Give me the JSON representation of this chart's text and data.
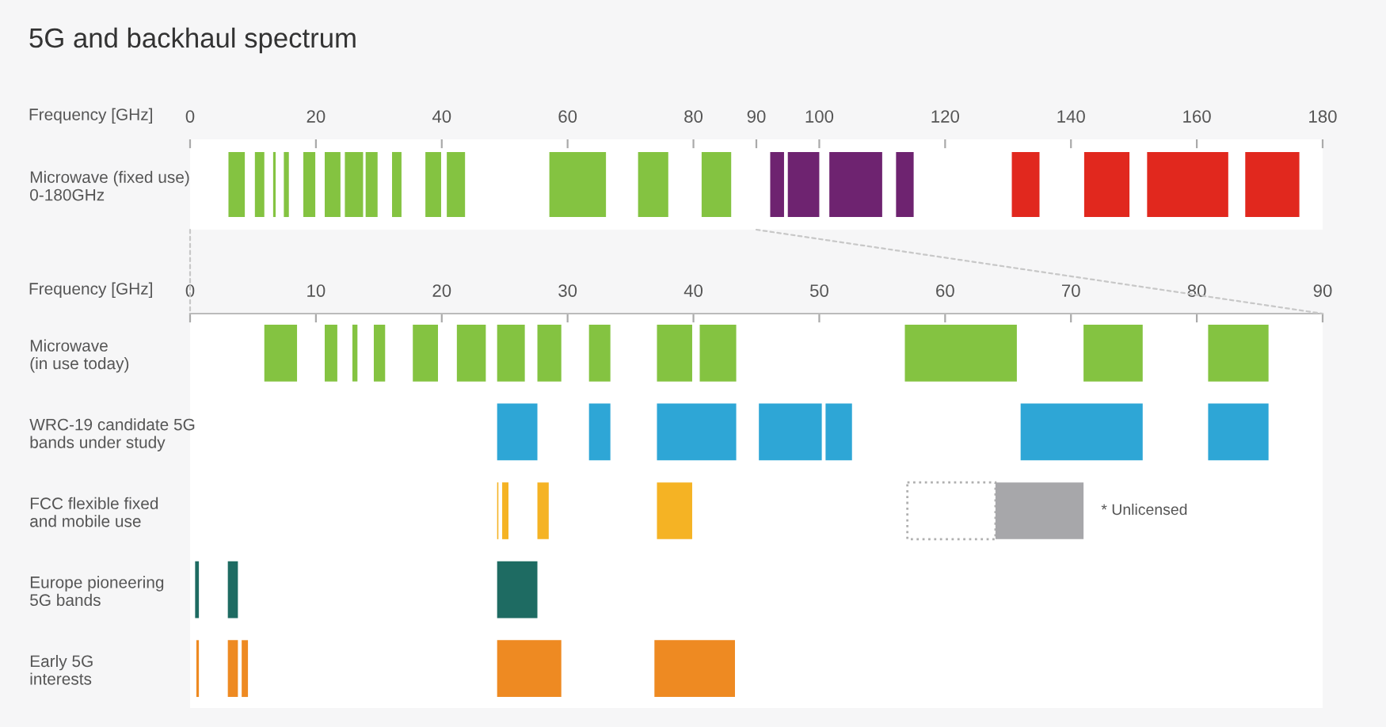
{
  "chart_data": [
    {
      "type": "bar",
      "orientation": "horizontal",
      "title": "5G and backhaul spectrum",
      "xlabel": "Frequency [GHz]",
      "categories": [
        "Microwave (fixed use)\n0-180GHz"
      ],
      "xlim": [
        0,
        180
      ],
      "xticks": [
        0,
        20,
        40,
        60,
        80,
        90,
        100,
        120,
        140,
        160,
        180
      ],
      "grid": false,
      "series": [
        {
          "color": "#84c341",
          "base": [
            6.1
          ],
          "values": [
            2.6
          ]
        },
        {
          "color": "#84c341",
          "base": [
            10.3
          ],
          "values": [
            1.5
          ]
        },
        {
          "color": "#84c341",
          "base": [
            13.2
          ],
          "values": [
            0.4
          ]
        },
        {
          "color": "#84c341",
          "base": [
            14.9
          ],
          "values": [
            0.8
          ]
        },
        {
          "color": "#84c341",
          "base": [
            18.0
          ],
          "values": [
            1.9
          ]
        },
        {
          "color": "#84c341",
          "base": [
            21.4
          ],
          "values": [
            2.5
          ]
        },
        {
          "color": "#84c341",
          "base": [
            24.6
          ],
          "values": [
            2.9
          ]
        },
        {
          "color": "#84c341",
          "base": [
            27.9
          ],
          "values": [
            1.9
          ]
        },
        {
          "color": "#84c341",
          "base": [
            32.1
          ],
          "values": [
            1.5
          ]
        },
        {
          "color": "#84c341",
          "base": [
            37.4
          ],
          "values": [
            2.5
          ]
        },
        {
          "color": "#84c341",
          "base": [
            40.8
          ],
          "values": [
            2.9
          ]
        },
        {
          "color": "#84c341",
          "base": [
            57.1
          ],
          "values": [
            9.0
          ]
        },
        {
          "color": "#84c341",
          "base": [
            71.2
          ],
          "values": [
            4.8
          ]
        },
        {
          "color": "#84c341",
          "base": [
            81.3
          ],
          "values": [
            4.7
          ]
        },
        {
          "color": "#6e2370",
          "base": [
            92.2
          ],
          "values": [
            2.2
          ]
        },
        {
          "color": "#6e2370",
          "base": [
            95.0
          ],
          "values": [
            5.0
          ]
        },
        {
          "color": "#6e2370",
          "base": [
            101.6
          ],
          "values": [
            8.4
          ]
        },
        {
          "color": "#6e2370",
          "base": [
            112.2
          ],
          "values": [
            2.8
          ]
        },
        {
          "color": "#e1281e",
          "base": [
            130.6
          ],
          "values": [
            4.4
          ]
        },
        {
          "color": "#e1281e",
          "base": [
            142.1
          ],
          "values": [
            7.2
          ]
        },
        {
          "color": "#e1281e",
          "base": [
            152.1
          ],
          "values": [
            12.9
          ]
        },
        {
          "color": "#e1281e",
          "base": [
            167.7
          ],
          "values": [
            8.6
          ]
        }
      ]
    },
    {
      "type": "bar",
      "orientation": "horizontal",
      "xlabel": "Frequency [GHz]",
      "categories": [
        "Microwave\n(in use today)",
        "WRC-19 candidate 5G\nbands under study",
        "FCC flexible fixed\nand mobile use",
        "Europe pioneering\n5G bands",
        "Early 5G\ninterests"
      ],
      "xlim": [
        0,
        90
      ],
      "xticks": [
        0,
        10,
        20,
        30,
        40,
        50,
        60,
        70,
        80,
        90
      ],
      "grid": false,
      "annotations": [
        {
          "text": "* Unlicensed",
          "x": 71,
          "y": "FCC flexible fixed\nand mobile use"
        }
      ],
      "series": [
        {
          "color": "#ffffff",
          "line_style": "dotted",
          "base": [
            null,
            null,
            57,
            null,
            null
          ],
          "values": [
            null,
            null,
            7,
            null,
            null
          ]
        },
        {
          "colors": [
            "#84c341",
            "#2ea6d6",
            "#f5b324",
            "#1e6b62",
            "#ee8a22"
          ],
          "base": [
            5.9,
            24.4,
            24.4,
            0.4,
            0.5
          ],
          "values": [
            2.6,
            3.2,
            0.1,
            0.3,
            0.2
          ]
        },
        {
          "colors": [
            "#84c341",
            "#2ea6d6",
            "#f5b324",
            "#1e6b62",
            "#ee8a22"
          ],
          "base": [
            10.7,
            31.7,
            24.8,
            3.0,
            3.0
          ],
          "values": [
            1.0,
            1.7,
            0.5,
            0.8,
            0.8
          ]
        },
        {
          "colors": [
            "#84c341",
            "#2ea6d6",
            "#f5b324",
            "#1e6b62",
            "#ee8a22"
          ],
          "base": [
            12.9,
            37.1,
            27.6,
            24.4,
            4.1
          ],
          "values": [
            0.4,
            6.3,
            0.9,
            3.2,
            0.5
          ]
        },
        {
          "colors": [
            "#84c341",
            "#2ea6d6",
            "#f5b324",
            null,
            "#ee8a22"
          ],
          "base": [
            14.6,
            45.2,
            37.1,
            null,
            24.4
          ],
          "values": [
            0.9,
            5.0,
            2.8,
            null,
            5.1
          ]
        },
        {
          "colors": [
            "#84c341",
            "#2ea6d6",
            "#a7a7aa",
            null,
            "#ee8a22"
          ],
          "base": [
            17.7,
            50.5,
            64,
            null,
            36.9
          ],
          "values": [
            2.0,
            2.1,
            7,
            null,
            6.4
          ]
        },
        {
          "colors": [
            "#84c341",
            "#2ea6d6",
            null,
            null,
            null
          ],
          "base": [
            21.2,
            66.0,
            null,
            null,
            null
          ],
          "values": [
            2.3,
            9.7,
            null,
            null,
            null
          ]
        },
        {
          "colors": [
            "#84c341",
            "#2ea6d6",
            null,
            null,
            null
          ],
          "base": [
            24.4,
            80.9,
            null,
            null,
            null
          ],
          "values": [
            2.2,
            4.8,
            null,
            null,
            null
          ]
        },
        {
          "color": "#84c341",
          "base": [
            27.6,
            null,
            null,
            null,
            null
          ],
          "values": [
            1.9,
            null,
            null,
            null,
            null
          ]
        },
        {
          "color": "#84c341",
          "base": [
            31.7,
            null,
            null,
            null,
            null
          ],
          "values": [
            1.7,
            null,
            null,
            null,
            null
          ]
        },
        {
          "color": "#84c341",
          "base": [
            37.1,
            null,
            null,
            null,
            null
          ],
          "values": [
            2.8,
            null,
            null,
            null,
            null
          ]
        },
        {
          "color": "#84c341",
          "base": [
            40.5,
            null,
            null,
            null,
            null
          ],
          "values": [
            2.9,
            null,
            null,
            null,
            null
          ]
        },
        {
          "color": "#84c341",
          "base": [
            56.8,
            null,
            null,
            null,
            null
          ],
          "values": [
            8.9,
            null,
            null,
            null,
            null
          ]
        },
        {
          "color": "#84c341",
          "base": [
            71.0,
            null,
            null,
            null,
            null
          ],
          "values": [
            4.7,
            null,
            null,
            null,
            null
          ]
        },
        {
          "color": "#84c341",
          "base": [
            80.9,
            null,
            null,
            null,
            null
          ],
          "values": [
            4.8,
            null,
            null,
            null,
            null
          ]
        }
      ]
    }
  ]
}
